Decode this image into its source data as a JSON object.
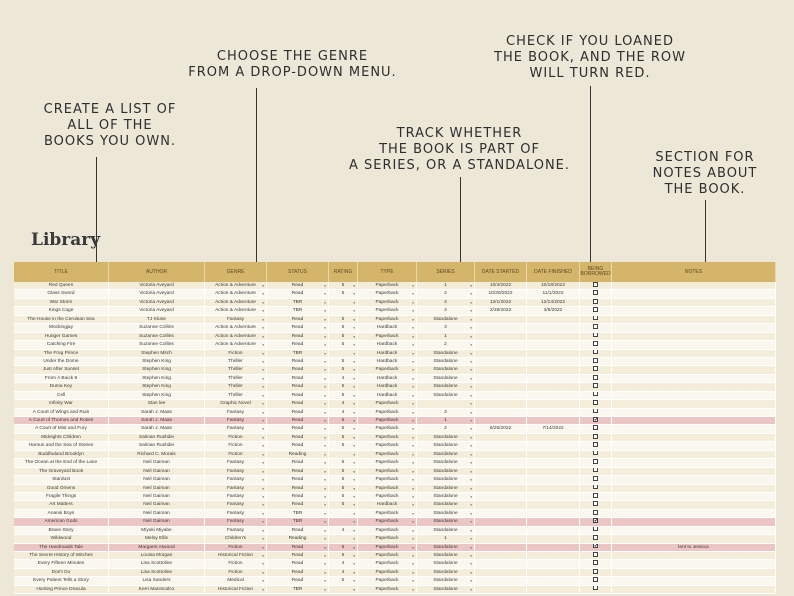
{
  "callouts": {
    "create": "CREATE A LIST OF\nALL OF THE\nBOOKS YOU OWN.",
    "genre": "CHOOSE THE GENRE\nFROM A DROP-DOWN MENU.",
    "series": "TRACK WHETHER\nTHE BOOK IS PART OF\nA SERIES, OR A STANDALONE.",
    "loan": "CHECK IF YOU LOANED\nTHE BOOK, AND THE ROW\nWILL TURN RED.",
    "notes": "SECTION FOR\nNOTES ABOUT\nTHE BOOK."
  },
  "library_title": "Library",
  "headers": {
    "title": "TITLE",
    "author": "AUTHOR",
    "genre": "GENRE",
    "status": "STATUS",
    "rating": "RATING",
    "type": "TYPE",
    "series": "SERIES",
    "start": "DATE STARTED",
    "finish": "DATE FINISHED",
    "borrow": "BEING BORROWED",
    "notes": "NOTES"
  },
  "rows": [
    {
      "title": "Red Queen",
      "author": "Victoria Aveyard",
      "genre": "Action & Adventure",
      "status": "Read",
      "rating": "5",
      "type": "Paperback",
      "series": "1",
      "start": "10/4/2022",
      "finish": "10/18/2022",
      "borrowed": false,
      "notes": ""
    },
    {
      "title": "Glass Sword",
      "author": "Victoria Aveyard",
      "genre": "Action & Adventure",
      "status": "Read",
      "rating": "5",
      "type": "Paperback",
      "series": "2",
      "start": "10/30/2022",
      "finish": "11/1/2022",
      "borrowed": false,
      "notes": ""
    },
    {
      "title": "War Storm",
      "author": "Victoria Aveyard",
      "genre": "Action & Adventure",
      "status": "TBR",
      "rating": "",
      "type": "Paperback",
      "series": "4",
      "start": "12/1/2022",
      "finish": "12/14/2022",
      "borrowed": false,
      "notes": ""
    },
    {
      "title": "Kings Cage",
      "author": "Victoria Aveyard",
      "genre": "Action & Adventure",
      "status": "TBR",
      "rating": "",
      "type": "Paperback",
      "series": "3",
      "start": "2/28/2022",
      "finish": "3/8/2022",
      "borrowed": false,
      "notes": ""
    },
    {
      "title": "The House in the Cerulean Sea",
      "author": "TJ Klune",
      "genre": "Fantasy",
      "status": "Read",
      "rating": "5",
      "type": "Paperback",
      "series": "Standalone",
      "start": "",
      "finish": "",
      "borrowed": false,
      "notes": ""
    },
    {
      "title": "Mockingjay",
      "author": "Suzanne Collins",
      "genre": "Action & Adventure",
      "status": "Read",
      "rating": "5",
      "type": "Hardback",
      "series": "3",
      "start": "",
      "finish": "",
      "borrowed": false,
      "notes": ""
    },
    {
      "title": "Hunger Games",
      "author": "Suzanne Collins",
      "genre": "Action & Adventure",
      "status": "Read",
      "rating": "5",
      "type": "Paperback",
      "series": "1",
      "start": "",
      "finish": "",
      "borrowed": false,
      "notes": ""
    },
    {
      "title": "Catching Fire",
      "author": "Suzanne Collins",
      "genre": "Action & Adventure",
      "status": "Read",
      "rating": "5",
      "type": "Hardback",
      "series": "2",
      "start": "",
      "finish": "",
      "borrowed": false,
      "notes": ""
    },
    {
      "title": "The Frog Prince",
      "author": "Stephen Mitch",
      "genre": "Fiction",
      "status": "TBR",
      "rating": "",
      "type": "Hardback",
      "series": "Standalone",
      "start": "",
      "finish": "",
      "borrowed": false,
      "notes": ""
    },
    {
      "title": "Under the Dome",
      "author": "Stephen King",
      "genre": "Thriller",
      "status": "Read",
      "rating": "5",
      "type": "Hardback",
      "series": "Standalone",
      "start": "",
      "finish": "",
      "borrowed": false,
      "notes": ""
    },
    {
      "title": "Just After Sunset",
      "author": "Stephen King",
      "genre": "Thriller",
      "status": "Read",
      "rating": "5",
      "type": "Paperback",
      "series": "Standalone",
      "start": "",
      "finish": "",
      "borrowed": false,
      "notes": ""
    },
    {
      "title": "From A Buick 8",
      "author": "Stephen King",
      "genre": "Thriller",
      "status": "Read",
      "rating": "4",
      "type": "Hardback",
      "series": "Standalone",
      "start": "",
      "finish": "",
      "borrowed": false,
      "notes": ""
    },
    {
      "title": "Duma Key",
      "author": "Stephen King",
      "genre": "Thriller",
      "status": "Read",
      "rating": "5",
      "type": "Hardback",
      "series": "Standalone",
      "start": "",
      "finish": "",
      "borrowed": false,
      "notes": ""
    },
    {
      "title": "Cell",
      "author": "Stephen King",
      "genre": "Thriller",
      "status": "Read",
      "rating": "5",
      "type": "Hardback",
      "series": "Standalone",
      "start": "",
      "finish": "",
      "borrowed": false,
      "notes": ""
    },
    {
      "title": "Infinity War",
      "author": "Stan lee",
      "genre": "Graphic Novel",
      "status": "Read",
      "rating": "4",
      "type": "Paperback",
      "series": "",
      "start": "",
      "finish": "",
      "borrowed": false,
      "notes": ""
    },
    {
      "title": "A Court of Wings and Ruin",
      "author": "Sarah J. Maas",
      "genre": "Fantasy",
      "status": "Read",
      "rating": "4",
      "type": "Paperback",
      "series": "3",
      "start": "",
      "finish": "",
      "borrowed": false,
      "notes": ""
    },
    {
      "title": "A Court of Thornes and Roses",
      "author": "Sarah J. Maas",
      "genre": "Fantasy",
      "status": "Read",
      "rating": "5",
      "type": "Paperback",
      "series": "1",
      "start": "",
      "finish": "",
      "borrowed": true,
      "notes": ""
    },
    {
      "title": "A Court of Mist and Fury",
      "author": "Sarah J. Maas",
      "genre": "Fantasy",
      "status": "Read",
      "rating": "5",
      "type": "Paperback",
      "series": "2",
      "start": "6/26/2022",
      "finish": "7/14/2022",
      "borrowed": false,
      "notes": ""
    },
    {
      "title": "Midnights Children",
      "author": "Salman Rushdie",
      "genre": "Fiction",
      "status": "Read",
      "rating": "5",
      "type": "Paperback",
      "series": "Standalone",
      "start": "",
      "finish": "",
      "borrowed": false,
      "notes": ""
    },
    {
      "title": "Haroun and the Sea of Stories",
      "author": "Salman Rushdie",
      "genre": "Fiction",
      "status": "Read",
      "rating": "5",
      "type": "Paperback",
      "series": "Standalone",
      "start": "",
      "finish": "",
      "borrowed": false,
      "notes": ""
    },
    {
      "title": "Buddhaland Brooklyn",
      "author": "Richard C. Morais",
      "genre": "Fiction",
      "status": "Reading",
      "rating": "",
      "type": "Paperback",
      "series": "Standalone",
      "start": "",
      "finish": "",
      "borrowed": false,
      "notes": ""
    },
    {
      "title": "The Ocean at the End of the Lane",
      "author": "Neil Gaiman",
      "genre": "Fantasy",
      "status": "Read",
      "rating": "5",
      "type": "Paperback",
      "series": "Standalone",
      "start": "",
      "finish": "",
      "borrowed": false,
      "notes": ""
    },
    {
      "title": "The Graveyard Book",
      "author": "Neil Gaiman",
      "genre": "Fantasy",
      "status": "Read",
      "rating": "5",
      "type": "Paperback",
      "series": "Standalone",
      "start": "",
      "finish": "",
      "borrowed": false,
      "notes": ""
    },
    {
      "title": "Stardust",
      "author": "Neil Gaiman",
      "genre": "Fantasy",
      "status": "Read",
      "rating": "5",
      "type": "Paperback",
      "series": "Standalone",
      "start": "",
      "finish": "",
      "borrowed": false,
      "notes": ""
    },
    {
      "title": "Good Omens",
      "author": "Neil Gaiman",
      "genre": "Fantasy",
      "status": "Read",
      "rating": "5",
      "type": "Paperback",
      "series": "Standalone",
      "start": "",
      "finish": "",
      "borrowed": false,
      "notes": ""
    },
    {
      "title": "Fragile Things",
      "author": "Neil Gaiman",
      "genre": "Fantasy",
      "status": "Read",
      "rating": "5",
      "type": "Paperback",
      "series": "Standalone",
      "start": "",
      "finish": "",
      "borrowed": false,
      "notes": ""
    },
    {
      "title": "Art Matters",
      "author": "Neil Gaiman",
      "genre": "Fantasy",
      "status": "Read",
      "rating": "5",
      "type": "Hardback",
      "series": "Standalone",
      "start": "",
      "finish": "",
      "borrowed": false,
      "notes": ""
    },
    {
      "title": "Anansi Boys",
      "author": "Neil Gaiman",
      "genre": "Fantasy",
      "status": "TBR",
      "rating": "",
      "type": "Paperback",
      "series": "Standalone",
      "start": "",
      "finish": "",
      "borrowed": false,
      "notes": ""
    },
    {
      "title": "American Gods",
      "author": "Neil Gaiman",
      "genre": "Fantasy",
      "status": "TBR",
      "rating": "",
      "type": "Paperback",
      "series": "Standalone",
      "start": "",
      "finish": "",
      "borrowed": true,
      "notes": ""
    },
    {
      "title": "Brave Story",
      "author": "Miyuki Miyabe",
      "genre": "Fantasy",
      "status": "Read",
      "rating": "4",
      "type": "Paperback",
      "series": "Standalone",
      "start": "",
      "finish": "",
      "borrowed": false,
      "notes": ""
    },
    {
      "title": "Wildwood",
      "author": "Meloy Ellis",
      "genre": "Children's",
      "status": "Reading",
      "rating": "",
      "type": "Paperback",
      "series": "1",
      "start": "",
      "finish": "",
      "borrowed": false,
      "notes": ""
    },
    {
      "title": "The Handmaids Tale",
      "author": "Margaret Atwood",
      "genre": "Fiction",
      "status": "Read",
      "rating": "5",
      "type": "Paperback",
      "series": "Standalone",
      "start": "",
      "finish": "",
      "borrowed": true,
      "notes": "lent to Jessica"
    },
    {
      "title": "The Secret History of Witches",
      "author": "Louisa Morgan",
      "genre": "Historical Fiction",
      "status": "Read",
      "rating": "5",
      "type": "Paperback",
      "series": "Standalone",
      "start": "",
      "finish": "",
      "borrowed": false,
      "notes": ""
    },
    {
      "title": "Every Fifteen Minutes",
      "author": "Lisa Scottoline",
      "genre": "Fiction",
      "status": "Read",
      "rating": "4",
      "type": "Paperback",
      "series": "Standalone",
      "start": "",
      "finish": "",
      "borrowed": false,
      "notes": ""
    },
    {
      "title": "Don't Go",
      "author": "Lisa Scottoline",
      "genre": "Fiction",
      "status": "Read",
      "rating": "4",
      "type": "Paperback",
      "series": "Standalone",
      "start": "",
      "finish": "",
      "borrowed": false,
      "notes": ""
    },
    {
      "title": "Every Patient Tells a Story",
      "author": "Lisa Sanders",
      "genre": "Medical",
      "status": "Read",
      "rating": "5",
      "type": "Paperback",
      "series": "Standalone",
      "start": "",
      "finish": "",
      "borrowed": false,
      "notes": ""
    },
    {
      "title": "Hunting Prince Dracula",
      "author": "Kerri Maniscalco",
      "genre": "Historical Fiction",
      "status": "TBR",
      "rating": "",
      "type": "Paperback",
      "series": "Standalone",
      "start": "",
      "finish": "",
      "borrowed": false,
      "notes": ""
    }
  ]
}
